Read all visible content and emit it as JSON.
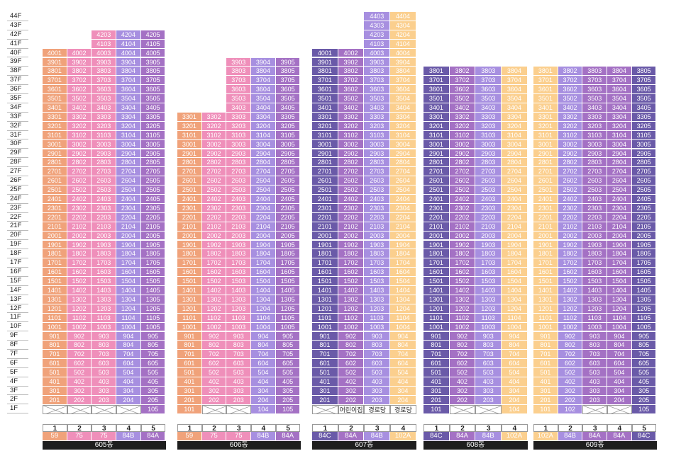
{
  "floors": [
    "44F",
    "43F",
    "42F",
    "41F",
    "40F",
    "39F",
    "38F",
    "37F",
    "36F",
    "35F",
    "34F",
    "33F",
    "32F",
    "31F",
    "30F",
    "29F",
    "28F",
    "27F",
    "26F",
    "25F",
    "24F",
    "23F",
    "22F",
    "21F",
    "20F",
    "19F",
    "18F",
    "17F",
    "16F",
    "15F",
    "14F",
    "13F",
    "12F",
    "11F",
    "10F",
    "9F",
    "8F",
    "7F",
    "6F",
    "5F",
    "4F",
    "3F",
    "2F",
    "1F"
  ],
  "colors": {
    "59": "#f0a27a",
    "75": "#ef8fba",
    "84A": "#a471c4",
    "84B": "#a78fe0",
    "84C": "#6a5aa8",
    "102A": "#fbcf8e"
  },
  "buildings": [
    {
      "name": "605동",
      "columns": [
        {
          "num": "1",
          "type": "59",
          "top": 40,
          "ground": "empty",
          "ground_label": ""
        },
        {
          "num": "2",
          "type": "75",
          "top": 40,
          "ground": "empty",
          "ground_label": ""
        },
        {
          "num": "3",
          "type": "75",
          "top": 42,
          "ground": "empty",
          "ground_label": ""
        },
        {
          "num": "4",
          "type": "84B",
          "top": 42,
          "ground": "empty",
          "ground_label": ""
        },
        {
          "num": "5",
          "type": "84A",
          "top": 42,
          "ground": "unit",
          "ground_label": "105"
        }
      ],
      "top_overrides": {
        "3": {
          "42": "4203",
          "41": "4103"
        }
      }
    },
    {
      "name": "606동",
      "columns": [
        {
          "num": "1",
          "type": "59",
          "top": 33,
          "ground": "unit",
          "ground_label": "101"
        },
        {
          "num": "2",
          "type": "75",
          "top": 33,
          "ground": "empty",
          "ground_label": ""
        },
        {
          "num": "3",
          "type": "75",
          "top": 39,
          "ground": "empty",
          "ground_label": ""
        },
        {
          "num": "4",
          "type": "84B",
          "top": 39,
          "ground": "unit",
          "ground_label": "104"
        },
        {
          "num": "5",
          "type": "84A",
          "top": 39,
          "ground": "unit",
          "ground_label": "105"
        }
      ]
    },
    {
      "name": "607동",
      "columns": [
        {
          "num": "1",
          "type": "84C",
          "top": 40,
          "ground": "empty",
          "ground_label": ""
        },
        {
          "num": "2",
          "type": "84A",
          "top": 40,
          "ground": "facility",
          "ground_label": "어린이집"
        },
        {
          "num": "3",
          "type": "84B",
          "top": 44,
          "ground": "facility",
          "ground_label": "경로당"
        },
        {
          "num": "4",
          "type": "102A",
          "top": 44,
          "ground": "facility",
          "ground_label": "경로당"
        }
      ]
    },
    {
      "name": "608동",
      "columns": [
        {
          "num": "1",
          "type": "84C",
          "top": 38,
          "ground": "unit",
          "ground_label": "101"
        },
        {
          "num": "2",
          "type": "84A",
          "top": 38,
          "ground": "empty",
          "ground_label": ""
        },
        {
          "num": "3",
          "type": "84B",
          "top": 38,
          "ground": "empty",
          "ground_label": ""
        },
        {
          "num": "4",
          "type": "102A",
          "top": 38,
          "ground": "unit",
          "ground_label": "104"
        }
      ]
    },
    {
      "name": "609동",
      "columns": [
        {
          "num": "1",
          "type": "102A",
          "top": 38,
          "ground": "unit",
          "ground_label": "101"
        },
        {
          "num": "2",
          "type": "84B",
          "top": 38,
          "ground": "unit",
          "ground_label": "102"
        },
        {
          "num": "3",
          "type": "84A",
          "top": 38,
          "ground": "empty",
          "ground_label": ""
        },
        {
          "num": "4",
          "type": "84A",
          "top": 38,
          "ground": "empty",
          "ground_label": ""
        },
        {
          "num": "5",
          "type": "84C",
          "top": 38,
          "ground": "unit",
          "ground_label": "105"
        }
      ]
    }
  ]
}
